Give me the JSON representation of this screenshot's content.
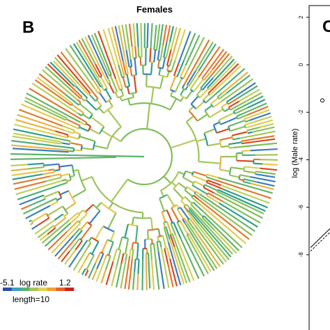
{
  "panel_b": {
    "letter": "B",
    "title": "Females",
    "legend": {
      "min_label": "-5.1",
      "max_label": "1.2",
      "name": "log rate",
      "length_label": "length=10",
      "colors": [
        "#2c4da8",
        "#3fa0c0",
        "#5ab36b",
        "#a8c45a",
        "#e6cf55",
        "#f2a136",
        "#e8612b",
        "#c8231f"
      ]
    },
    "tip_colors": [
      "#7fbf5a",
      "#8fc25b",
      "#a3c85b",
      "#c2cf58",
      "#dbd158",
      "#e8c84f",
      "#e9b243",
      "#66b46a",
      "#4fae7c",
      "#2d9e8e",
      "#3d7fbf",
      "#e07a2f",
      "#d84a22"
    ]
  },
  "panel_c": {
    "letter": "C",
    "ylabel": "log (Male rate)",
    "yticks": [
      "2",
      "0",
      "-2",
      "-4",
      "-6",
      "-8"
    ],
    "ylim": [
      -9,
      2.2
    ],
    "points": [
      {
        "y": -1.5
      }
    ]
  }
}
